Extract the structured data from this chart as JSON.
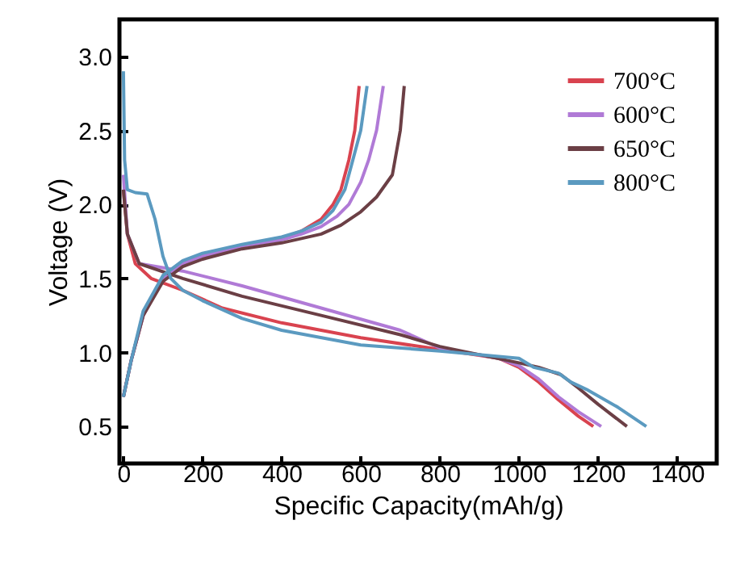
{
  "chart_data": {
    "type": "line",
    "xlabel": "Specific Capacity(mAh/g)",
    "ylabel": "Voltage (V)",
    "xlim": [
      -10,
      1500
    ],
    "ylim": [
      0.25,
      3.25
    ],
    "xticks": [
      0,
      200,
      400,
      600,
      800,
      1000,
      1200,
      1400
    ],
    "yticks": [
      {
        "value": 0.5,
        "label": "0.5"
      },
      {
        "value": 1,
        "label": "1.0"
      },
      {
        "value": 1.5,
        "label": "1.5"
      },
      {
        "value": 2,
        "label": "2.0"
      },
      {
        "value": 2.5,
        "label": "2.5"
      },
      {
        "value": 3,
        "label": "3.0"
      }
    ],
    "legend": "top right",
    "grid": false,
    "series": [
      {
        "name": "700°C",
        "color": "#d9434f",
        "x": [
          0,
          10,
          30,
          70,
          150,
          250,
          400,
          600,
          800,
          950,
          1000,
          1050,
          1100,
          1150,
          1188,
          null,
          0,
          20,
          50,
          100,
          150,
          200,
          300,
          400,
          450,
          500,
          530,
          550,
          570,
          585,
          596
        ],
        "values": [
          2.1,
          1.8,
          1.6,
          1.5,
          1.42,
          1.3,
          1.2,
          1.1,
          1.02,
          0.96,
          0.9,
          0.8,
          0.68,
          0.57,
          0.5,
          null,
          0.7,
          0.95,
          1.25,
          1.5,
          1.6,
          1.65,
          1.72,
          1.77,
          1.82,
          1.9,
          2.0,
          2.1,
          2.3,
          2.5,
          2.8
        ]
      },
      {
        "name": "600°C",
        "color": "#b07ad6",
        "x": [
          0,
          10,
          40,
          150,
          300,
          500,
          700,
          800,
          950,
          1000,
          1050,
          1100,
          1150,
          1208,
          null,
          0,
          20,
          50,
          100,
          150,
          200,
          300,
          400,
          450,
          500,
          540,
          570,
          600,
          620,
          640,
          657
        ],
        "values": [
          2.2,
          1.8,
          1.6,
          1.55,
          1.45,
          1.3,
          1.15,
          1.03,
          0.96,
          0.91,
          0.82,
          0.7,
          0.6,
          0.5,
          null,
          0.7,
          0.95,
          1.25,
          1.5,
          1.6,
          1.65,
          1.72,
          1.76,
          1.8,
          1.85,
          1.92,
          2.0,
          2.15,
          2.3,
          2.5,
          2.8
        ]
      },
      {
        "name": "650°C",
        "color": "#6b3f45",
        "x": [
          0,
          10,
          40,
          150,
          300,
          500,
          700,
          800,
          1000,
          1050,
          1106,
          1150,
          1200,
          1273,
          null,
          0,
          20,
          50,
          100,
          150,
          200,
          300,
          400,
          500,
          550,
          600,
          640,
          680,
          700,
          710
        ],
        "values": [
          2.1,
          1.8,
          1.6,
          1.5,
          1.38,
          1.25,
          1.12,
          1.04,
          0.93,
          0.9,
          0.85,
          0.76,
          0.65,
          0.5,
          null,
          0.7,
          0.95,
          1.25,
          1.48,
          1.58,
          1.63,
          1.7,
          1.74,
          1.8,
          1.86,
          1.95,
          2.05,
          2.2,
          2.5,
          2.8
        ]
      },
      {
        "name": "800°C",
        "color": "#5b9ac0",
        "x": [
          0,
          3,
          10,
          30,
          60,
          80,
          100,
          120,
          150,
          200,
          300,
          400,
          600,
          800,
          1000,
          1037,
          1100,
          1131,
          1171,
          1250,
          1322,
          null,
          0,
          20,
          50,
          100,
          150,
          200,
          300,
          400,
          450,
          500,
          530,
          560,
          580,
          600,
          616
        ],
        "values": [
          2.9,
          2.3,
          2.1,
          2.08,
          2.07,
          1.9,
          1.65,
          1.5,
          1.42,
          1.35,
          1.23,
          1.15,
          1.05,
          1.01,
          0.96,
          0.9,
          0.86,
          0.8,
          0.75,
          0.63,
          0.5,
          null,
          0.7,
          0.95,
          1.28,
          1.52,
          1.62,
          1.67,
          1.73,
          1.78,
          1.82,
          1.88,
          1.96,
          2.1,
          2.3,
          2.5,
          2.8
        ]
      }
    ]
  }
}
